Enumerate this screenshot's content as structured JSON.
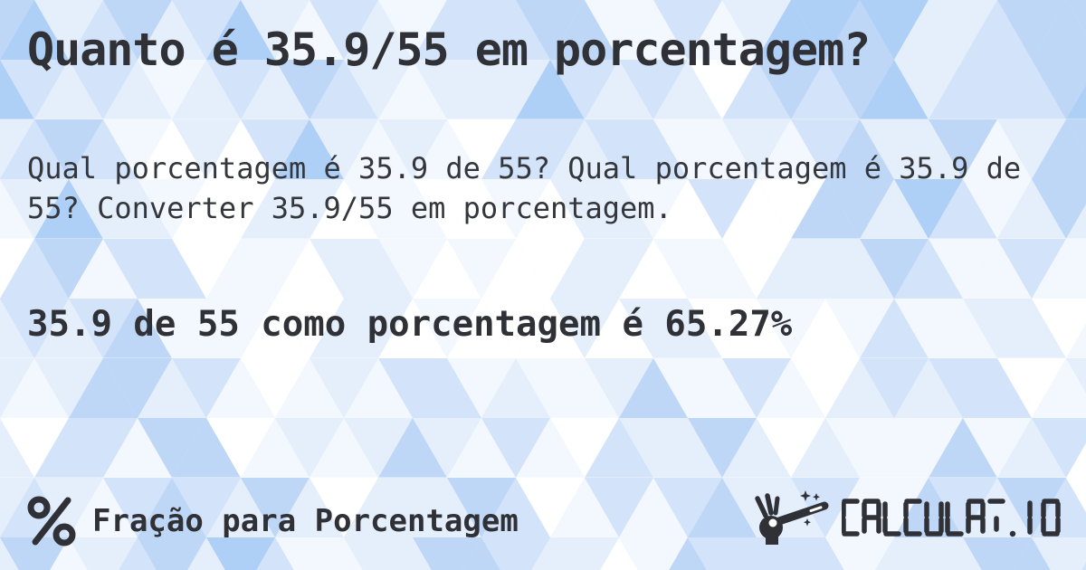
{
  "card": {
    "title": "Quanto é 35.9/55 em porcentagem?",
    "question": "Qual porcentagem é 35.9 de 55? Qual porcentagem é 35.9 de 55? Converter 35.9/55 em porcentagem.",
    "answer": "35.9 de 55 como porcentagem é 65.27%"
  },
  "footer": {
    "category": "Fração para Porcentagem",
    "brand": "CALCULAT.IO",
    "icons": [
      "percent-icon",
      "magic-wand-icon"
    ]
  },
  "colors": {
    "text": "#2f3136",
    "background_palette": [
      "#ffffff",
      "#f3f8fe",
      "#e5effc",
      "#d3e3fa",
      "#bfd7f7",
      "#aecff6",
      "#9cc3f3"
    ],
    "seam_line": "#ffffff"
  }
}
